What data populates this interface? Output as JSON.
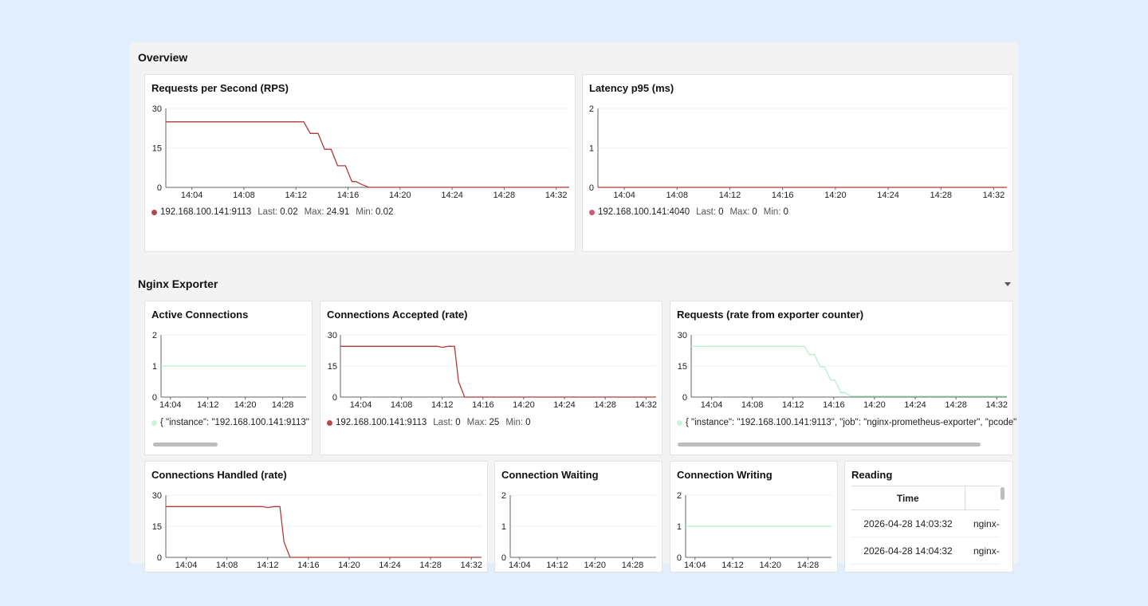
{
  "colors": {
    "series_red": "#b0393c",
    "series_green": "#b5f0cf",
    "dot_red": "#b5484f",
    "dot_pink": "#d05a79",
    "dot_mint": "#c8f2da"
  },
  "rows": {
    "overview": {
      "title": "Overview"
    },
    "nginx": {
      "title": "Nginx Exporter"
    }
  },
  "panels": {
    "rps": {
      "title": "Requests per Second (RPS)",
      "legend": {
        "name": "192.168.100.141:9113",
        "last_label": "Last:",
        "last": "0.02",
        "max_label": "Max:",
        "max": "24.91",
        "min_label": "Min:",
        "min": "0.02"
      }
    },
    "latency": {
      "title": "Latency p95 (ms)",
      "legend": {
        "name": "192.168.100.141:4040",
        "last_label": "Last:",
        "last": "0",
        "max_label": "Max:",
        "max": "0",
        "min_label": "Min:",
        "min": "0"
      }
    },
    "active": {
      "title": "Active Connections",
      "legend": {
        "name": "{ \"instance\": \"192.168.100.141:9113\""
      }
    },
    "accepted": {
      "title": "Connections Accepted (rate)",
      "legend": {
        "name": "192.168.100.141:9113",
        "last_label": "Last:",
        "last": "0",
        "max_label": "Max:",
        "max": "25",
        "min_label": "Min:",
        "min": "0"
      }
    },
    "requests": {
      "title": "Requests (rate from exporter counter)",
      "legend": {
        "name": "{ \"instance\": \"192.168.100.141:9113\", \"job\": \"nginx-prometheus-exporter\", \"pcode\""
      }
    },
    "handled": {
      "title": "Connections Handled (rate)"
    },
    "waiting": {
      "title": "Connection Waiting"
    },
    "writing": {
      "title": "Connection Writing"
    },
    "reading": {
      "title": "Reading",
      "columns": [
        "Time",
        ""
      ],
      "rows": [
        [
          "2026-04-28 14:03:32",
          "nginx-"
        ],
        [
          "2026-04-28 14:04:32",
          "nginx-"
        ]
      ]
    }
  },
  "chart_data": [
    {
      "id": "rps",
      "type": "line",
      "title": "Requests per Second (RPS)",
      "xlim": [
        "14:02",
        "14:33"
      ],
      "ylim": [
        0,
        30
      ],
      "x_ticks": [
        "14:04",
        "14:08",
        "14:12",
        "14:16",
        "14:20",
        "14:24",
        "14:28",
        "14:32"
      ],
      "y_ticks": [
        "0",
        "15",
        "30"
      ],
      "series": [
        {
          "name": "192.168.100.141:9113",
          "color": "#b0393c",
          "x": [
            "14:02",
            "14:12.6",
            "14:13.1",
            "14:13.7",
            "14:14.2",
            "14:14.7",
            "14:15.2",
            "14:15.8",
            "14:16.3",
            "14:16.6",
            "14:17.1",
            "14:17.6",
            "14:33"
          ],
          "y": [
            24.91,
            24.91,
            20.5,
            20.5,
            14.5,
            14.5,
            8.2,
            8.2,
            2.2,
            2.2,
            1.0,
            0.02,
            0.02
          ]
        }
      ]
    },
    {
      "id": "latency",
      "type": "line",
      "title": "Latency p95 (ms)",
      "xlim": [
        "14:02",
        "14:33"
      ],
      "ylim": [
        0,
        2
      ],
      "x_ticks": [
        "14:04",
        "14:08",
        "14:12",
        "14:16",
        "14:20",
        "14:24",
        "14:28",
        "14:32"
      ],
      "y_ticks": [
        "0",
        "1",
        "2"
      ],
      "series": [
        {
          "name": "192.168.100.141:4040",
          "color": "#b0393c",
          "x": [
            "14:02",
            "14:33"
          ],
          "y": [
            0,
            0
          ]
        }
      ]
    },
    {
      "id": "active",
      "type": "line",
      "title": "Active Connections",
      "xlim": [
        "14:02",
        "14:33"
      ],
      "ylim": [
        0,
        2
      ],
      "x_ticks": [
        "14:04",
        "14:12",
        "14:20",
        "14:28"
      ],
      "y_ticks": [
        "0",
        "1",
        "2"
      ],
      "series": [
        {
          "name": "{ \"instance\": \"192.168.100.141:9113\"",
          "color": "#b5f0cf",
          "x": [
            "14:02",
            "14:33"
          ],
          "y": [
            1,
            1
          ]
        }
      ]
    },
    {
      "id": "accepted",
      "type": "line",
      "title": "Connections Accepted (rate)",
      "xlim": [
        "14:02",
        "14:33"
      ],
      "ylim": [
        0,
        30
      ],
      "x_ticks": [
        "14:04",
        "14:08",
        "14:12",
        "14:16",
        "14:20",
        "14:24",
        "14:28",
        "14:32"
      ],
      "y_ticks": [
        "0",
        "15",
        "30"
      ],
      "series": [
        {
          "name": "192.168.100.141:9113",
          "color": "#b0393c",
          "x": [
            "14:02",
            "14:11.5",
            "14:12",
            "14:12.6",
            "14:13.2",
            "14:13.6",
            "14:14.2",
            "14:33"
          ],
          "y": [
            24.5,
            24.5,
            24.0,
            24.5,
            24.5,
            7.5,
            0,
            0
          ]
        }
      ]
    },
    {
      "id": "requests",
      "type": "line",
      "title": "Requests (rate from exporter counter)",
      "xlim": [
        "14:02",
        "14:33"
      ],
      "ylim": [
        0,
        30
      ],
      "x_ticks": [
        "14:04",
        "14:08",
        "14:12",
        "14:16",
        "14:20",
        "14:24",
        "14:28",
        "14:32"
      ],
      "y_ticks": [
        "0",
        "15",
        "30"
      ],
      "series": [
        {
          "name": "{ \"instance\": \"192.168.100.141:9113\", \"job\": \"nginx-prometheus-exporter\", \"pcode\"",
          "color": "#b5f0cf",
          "x": [
            "14:02",
            "14:13.1",
            "14:13.6",
            "14:14.1",
            "14:14.7",
            "14:15.1",
            "14:15.7",
            "14:16.1",
            "14:16.7",
            "14:17.1",
            "14:17.6",
            "14:33"
          ],
          "y": [
            24.5,
            24.5,
            20.5,
            20.5,
            14.5,
            14.5,
            8.2,
            8.2,
            2.2,
            2.2,
            0.5,
            0.5
          ]
        }
      ]
    },
    {
      "id": "handled",
      "type": "line",
      "title": "Connections Handled (rate)",
      "xlim": [
        "14:02",
        "14:33"
      ],
      "ylim": [
        0,
        30
      ],
      "x_ticks": [
        "14:04",
        "14:08",
        "14:12",
        "14:16",
        "14:20",
        "14:24",
        "14:28",
        "14:32"
      ],
      "y_ticks": [
        "0",
        "15",
        "30"
      ],
      "series": [
        {
          "name": "192.168.100.141:9113",
          "color": "#b0393c",
          "x": [
            "14:02",
            "14:11.5",
            "14:12",
            "14:12.6",
            "14:13.2",
            "14:13.6",
            "14:14.2",
            "14:33"
          ],
          "y": [
            24.5,
            24.5,
            24.0,
            24.5,
            24.5,
            7.5,
            0,
            0
          ]
        }
      ]
    },
    {
      "id": "waiting",
      "type": "line",
      "title": "Connection Waiting",
      "xlim": [
        "14:02",
        "14:33"
      ],
      "ylim": [
        0,
        2
      ],
      "x_ticks": [
        "14:04",
        "14:12",
        "14:20",
        "14:28"
      ],
      "y_ticks": [
        "0",
        "1",
        "2"
      ],
      "series": []
    },
    {
      "id": "writing",
      "type": "line",
      "title": "Connection Writing",
      "xlim": [
        "14:02",
        "14:33"
      ],
      "ylim": [
        0,
        2
      ],
      "x_ticks": [
        "14:04",
        "14:12",
        "14:20",
        "14:28"
      ],
      "y_ticks": [
        "0",
        "1",
        "2"
      ],
      "series": [
        {
          "name": "",
          "color": "#b5f0cf",
          "x": [
            "14:02",
            "14:33"
          ],
          "y": [
            1,
            1
          ]
        }
      ]
    }
  ]
}
